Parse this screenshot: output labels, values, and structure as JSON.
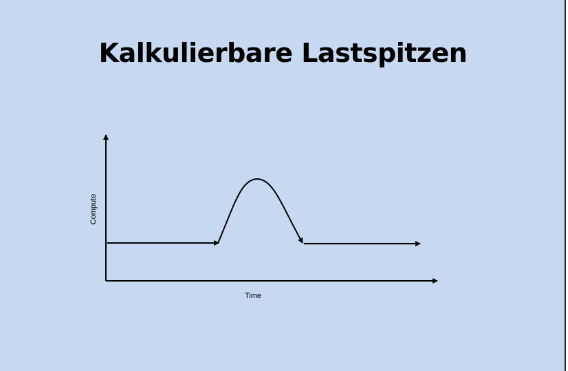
{
  "slide": {
    "title": "Kalkulierbare Lastspitzen",
    "background_color": "#c6d9f1"
  },
  "diagram": {
    "y_axis_label": "Compute",
    "x_axis_label": "Time",
    "line_color": "#000000"
  }
}
